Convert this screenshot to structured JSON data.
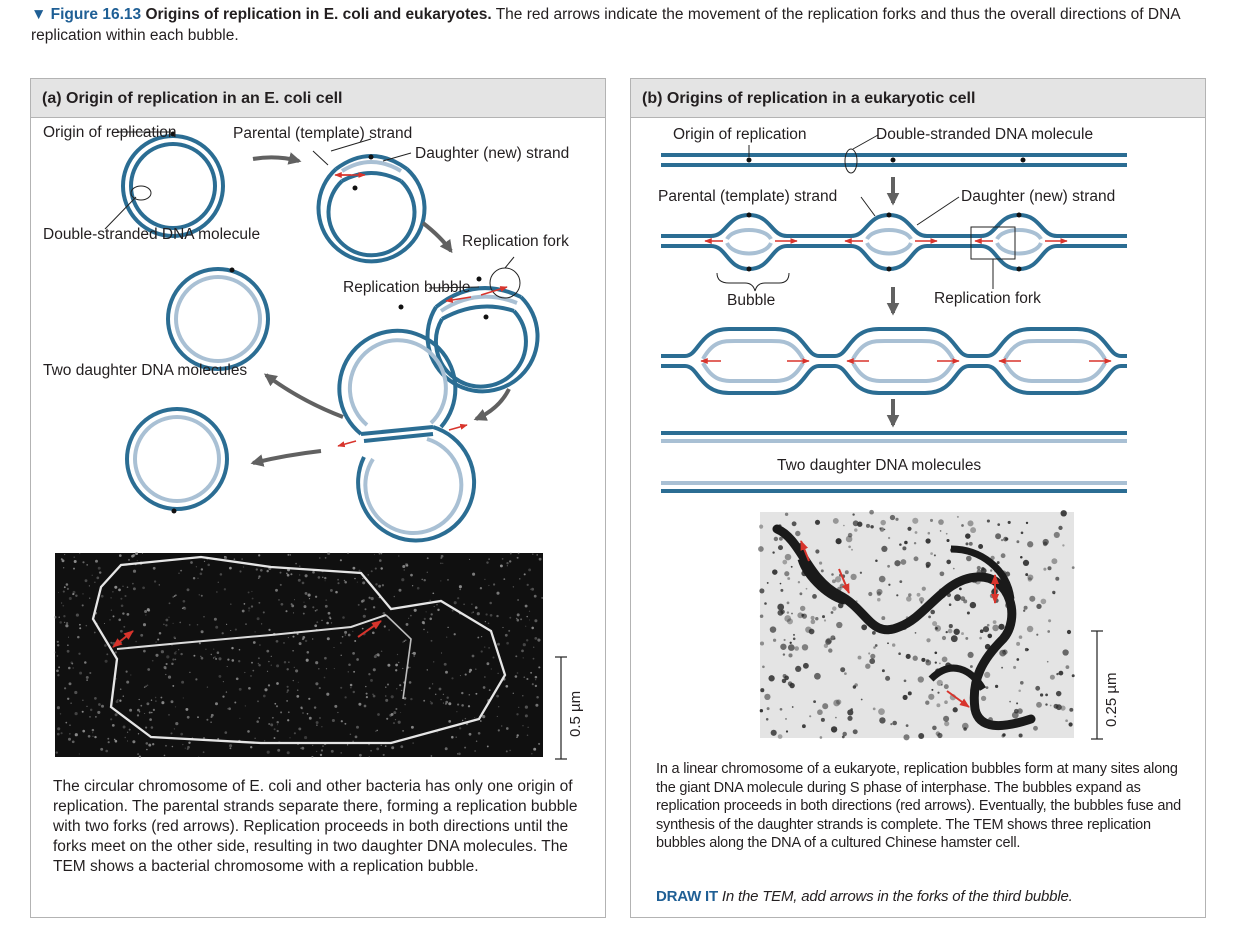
{
  "caption": {
    "marker": "▼",
    "figure_label": "Figure 16.13",
    "title": "Origins of replication in E. coli and eukaryotes.",
    "text": "The red arrows indicate the movement of the replication forks and thus the overall directions of DNA replication within each bubble."
  },
  "panel_a": {
    "header": "(a) Origin of replication in an E. coli cell",
    "labels": {
      "origin": "Origin of replication",
      "parental": "Parental (template) strand",
      "daughter": "Daughter (new) strand",
      "double": "Double-stranded DNA molecule",
      "fork": "Replication fork",
      "bubble": "Replication bubble",
      "two_daughter": "Two daughter DNA molecules"
    },
    "scale_bar": "0.5 µm",
    "description": "The circular chromosome of E. coli and other bacteria has only one origin of replication. The parental strands separate there, forming a replication bubble with two forks (red arrows). Replication proceeds in both directions until the forks meet on the other side, resulting in two daughter DNA molecules. The TEM shows a bacterial chromosome with a replication bubble."
  },
  "panel_b": {
    "header": "(b) Origins of replication in a eukaryotic cell",
    "labels": {
      "origin": "Origin of replication",
      "double": "Double-stranded DNA molecule",
      "parental": "Parental (template) strand",
      "daughter": "Daughter (new) strand",
      "bubble": "Bubble",
      "fork": "Replication fork",
      "two_daughter": "Two daughter DNA molecules"
    },
    "scale_bar": "0.25 µm",
    "description": "In a linear chromosome of a eukaryote, replication bubbles form at many sites along the giant DNA molecule during S phase of interphase. The bubbles expand as replication proceeds in both directions (red arrows). Eventually, the bubbles fuse and synthesis of the daughter strands is complete. The TEM shows three replication bubbles along the DNA of a cultured Chinese hamster cell.",
    "draw_it_label": "DRAW IT",
    "draw_it_text": "In the TEM, add arrows in the forks of the third bubble."
  },
  "colors": {
    "parental_strand": "#2b6d93",
    "daughter_strand": "#a9c0d4",
    "fork_arrow": "#d8342c",
    "step_arrow": "#616161",
    "accent": "#1f5f95"
  }
}
